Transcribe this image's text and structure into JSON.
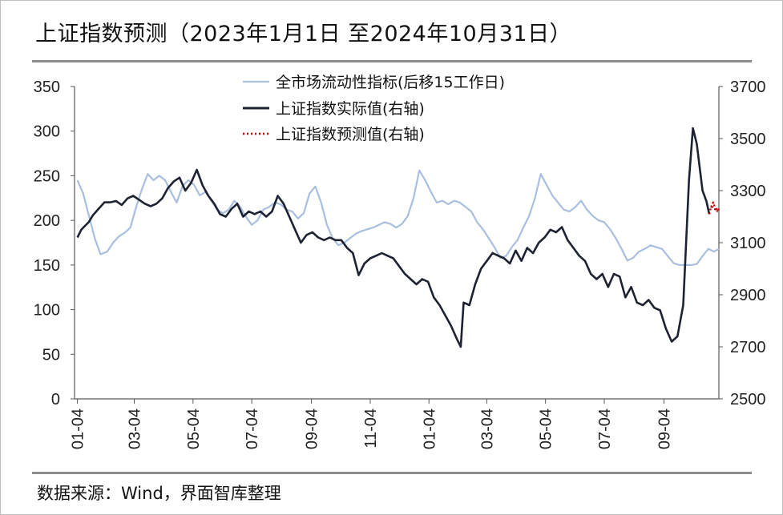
{
  "title": "上证指数预测（2023年1月1日 至2024年10月31日）",
  "source": "数据来源：Wind，界面智库整理",
  "colors": {
    "liquidity": "#a9bfdf",
    "actual": "#1d2333",
    "forecast": "#c00000",
    "axis": "#595959",
    "rule": "#8c8c8c"
  },
  "chart_data": {
    "type": "line",
    "x_tick_labels": [
      "01-04",
      "03-04",
      "05-04",
      "07-04",
      "09-04",
      "11-04",
      "01-04",
      "03-04",
      "05-04",
      "07-04",
      "09-04"
    ],
    "x_range": [
      "2023-01-01",
      "2024-10-31"
    ],
    "left_axis": {
      "ticks": [
        0,
        50,
        100,
        150,
        200,
        250,
        300,
        350
      ],
      "ylim": [
        0,
        350
      ]
    },
    "right_axis": {
      "ticks": [
        2500,
        2700,
        2900,
        3100,
        3300,
        3500,
        3700
      ],
      "ylim": [
        2500,
        3700
      ]
    },
    "legend": [
      "全市场流动性指标(后移15工作日)",
      "上证指数实际值(右轴)",
      "上证指数预测值(右轴)"
    ],
    "series": [
      {
        "name": "全市场流动性指标(后移15工作日)",
        "axis": "left",
        "style": "solid",
        "points": [
          [
            "2023-01-04",
            245
          ],
          [
            "2023-01-10",
            230
          ],
          [
            "2023-01-16",
            205
          ],
          [
            "2023-01-22",
            180
          ],
          [
            "2023-01-28",
            162
          ],
          [
            "2023-02-04",
            165
          ],
          [
            "2023-02-10",
            175
          ],
          [
            "2023-02-16",
            182
          ],
          [
            "2023-02-22",
            186
          ],
          [
            "2023-02-28",
            192
          ],
          [
            "2023-03-06",
            215
          ],
          [
            "2023-03-12",
            235
          ],
          [
            "2023-03-18",
            252
          ],
          [
            "2023-03-24",
            245
          ],
          [
            "2023-03-30",
            250
          ],
          [
            "2023-04-05",
            245
          ],
          [
            "2023-04-11",
            232
          ],
          [
            "2023-04-17",
            220
          ],
          [
            "2023-04-23",
            238
          ],
          [
            "2023-04-29",
            245
          ],
          [
            "2023-05-05",
            240
          ],
          [
            "2023-05-11",
            228
          ],
          [
            "2023-05-17",
            232
          ],
          [
            "2023-05-23",
            222
          ],
          [
            "2023-05-29",
            212
          ],
          [
            "2023-06-04",
            208
          ],
          [
            "2023-06-10",
            212
          ],
          [
            "2023-06-16",
            222
          ],
          [
            "2023-06-22",
            215
          ],
          [
            "2023-06-28",
            204
          ],
          [
            "2023-07-04",
            195
          ],
          [
            "2023-07-10",
            200
          ],
          [
            "2023-07-16",
            212
          ],
          [
            "2023-07-22",
            215
          ],
          [
            "2023-07-28",
            220
          ],
          [
            "2023-08-03",
            218
          ],
          [
            "2023-08-09",
            212
          ],
          [
            "2023-08-15",
            210
          ],
          [
            "2023-08-21",
            202
          ],
          [
            "2023-08-27",
            208
          ],
          [
            "2023-09-02",
            230
          ],
          [
            "2023-09-08",
            238
          ],
          [
            "2023-09-14",
            220
          ],
          [
            "2023-09-20",
            195
          ],
          [
            "2023-09-26",
            180
          ],
          [
            "2023-10-02",
            172
          ],
          [
            "2023-10-08",
            175
          ],
          [
            "2023-10-14",
            180
          ],
          [
            "2023-10-20",
            185
          ],
          [
            "2023-10-26",
            188
          ],
          [
            "2023-11-01",
            190
          ],
          [
            "2023-11-07",
            192
          ],
          [
            "2023-11-13",
            195
          ],
          [
            "2023-11-19",
            198
          ],
          [
            "2023-11-25",
            196
          ],
          [
            "2023-12-01",
            192
          ],
          [
            "2023-12-07",
            196
          ],
          [
            "2023-12-13",
            205
          ],
          [
            "2023-12-19",
            225
          ],
          [
            "2023-12-25",
            256
          ],
          [
            "2023-12-31",
            245
          ],
          [
            "2024-01-06",
            232
          ],
          [
            "2024-01-12",
            220
          ],
          [
            "2024-01-18",
            222
          ],
          [
            "2024-01-24",
            218
          ],
          [
            "2024-01-30",
            222
          ],
          [
            "2024-02-05",
            220
          ],
          [
            "2024-02-11",
            215
          ],
          [
            "2024-02-17",
            210
          ],
          [
            "2024-02-23",
            198
          ],
          [
            "2024-02-29",
            190
          ],
          [
            "2024-03-06",
            180
          ],
          [
            "2024-03-12",
            170
          ],
          [
            "2024-03-18",
            158
          ],
          [
            "2024-03-24",
            160
          ],
          [
            "2024-03-30",
            170
          ],
          [
            "2024-04-05",
            178
          ],
          [
            "2024-04-11",
            192
          ],
          [
            "2024-04-17",
            205
          ],
          [
            "2024-04-23",
            225
          ],
          [
            "2024-04-29",
            252
          ],
          [
            "2024-05-05",
            240
          ],
          [
            "2024-05-11",
            228
          ],
          [
            "2024-05-17",
            220
          ],
          [
            "2024-05-23",
            212
          ],
          [
            "2024-05-29",
            210
          ],
          [
            "2024-06-04",
            215
          ],
          [
            "2024-06-10",
            222
          ],
          [
            "2024-06-16",
            212
          ],
          [
            "2024-06-22",
            205
          ],
          [
            "2024-06-28",
            200
          ],
          [
            "2024-07-04",
            198
          ],
          [
            "2024-07-10",
            190
          ],
          [
            "2024-07-16",
            180
          ],
          [
            "2024-07-22",
            168
          ],
          [
            "2024-07-28",
            155
          ],
          [
            "2024-08-03",
            158
          ],
          [
            "2024-08-09",
            165
          ],
          [
            "2024-08-15",
            168
          ],
          [
            "2024-08-21",
            172
          ],
          [
            "2024-08-27",
            170
          ],
          [
            "2024-09-02",
            168
          ],
          [
            "2024-09-08",
            160
          ],
          [
            "2024-09-14",
            152
          ],
          [
            "2024-09-20",
            150
          ],
          [
            "2024-09-26",
            150
          ],
          [
            "2024-10-02",
            150
          ],
          [
            "2024-10-08",
            151
          ],
          [
            "2024-10-14",
            160
          ],
          [
            "2024-10-20",
            168
          ],
          [
            "2024-10-26",
            165
          ],
          [
            "2024-10-31",
            168
          ]
        ]
      },
      {
        "name": "上证指数实际值(右轴)",
        "axis": "right",
        "style": "solid",
        "points": [
          [
            "2023-01-04",
            3120
          ],
          [
            "2023-01-08",
            3150
          ],
          [
            "2023-01-12",
            3165
          ],
          [
            "2023-01-16",
            3180
          ],
          [
            "2023-01-20",
            3205
          ],
          [
            "2023-01-26",
            3230
          ],
          [
            "2023-02-01",
            3255
          ],
          [
            "2023-02-07",
            3255
          ],
          [
            "2023-02-13",
            3260
          ],
          [
            "2023-02-19",
            3245
          ],
          [
            "2023-02-25",
            3270
          ],
          [
            "2023-03-03",
            3280
          ],
          [
            "2023-03-09",
            3265
          ],
          [
            "2023-03-15",
            3250
          ],
          [
            "2023-03-21",
            3240
          ],
          [
            "2023-03-27",
            3250
          ],
          [
            "2023-04-02",
            3270
          ],
          [
            "2023-04-08",
            3310
          ],
          [
            "2023-04-14",
            3335
          ],
          [
            "2023-04-20",
            3350
          ],
          [
            "2023-04-26",
            3300
          ],
          [
            "2023-05-02",
            3330
          ],
          [
            "2023-05-08",
            3380
          ],
          [
            "2023-05-14",
            3320
          ],
          [
            "2023-05-20",
            3280
          ],
          [
            "2023-05-26",
            3250
          ],
          [
            "2023-06-01",
            3210
          ],
          [
            "2023-06-07",
            3200
          ],
          [
            "2023-06-13",
            3230
          ],
          [
            "2023-06-19",
            3250
          ],
          [
            "2023-06-25",
            3200
          ],
          [
            "2023-07-01",
            3220
          ],
          [
            "2023-07-07",
            3210
          ],
          [
            "2023-07-13",
            3220
          ],
          [
            "2023-07-19",
            3200
          ],
          [
            "2023-07-25",
            3220
          ],
          [
            "2023-07-31",
            3280
          ],
          [
            "2023-08-06",
            3250
          ],
          [
            "2023-08-12",
            3200
          ],
          [
            "2023-08-18",
            3150
          ],
          [
            "2023-08-24",
            3100
          ],
          [
            "2023-08-30",
            3130
          ],
          [
            "2023-09-05",
            3140
          ],
          [
            "2023-09-11",
            3120
          ],
          [
            "2023-09-17",
            3110
          ],
          [
            "2023-09-23",
            3120
          ],
          [
            "2023-09-29",
            3110
          ],
          [
            "2023-10-05",
            3110
          ],
          [
            "2023-10-11",
            3080
          ],
          [
            "2023-10-17",
            3060
          ],
          [
            "2023-10-23",
            2975
          ],
          [
            "2023-10-29",
            3020
          ],
          [
            "2023-11-04",
            3040
          ],
          [
            "2023-11-10",
            3050
          ],
          [
            "2023-11-16",
            3060
          ],
          [
            "2023-11-22",
            3050
          ],
          [
            "2023-11-28",
            3040
          ],
          [
            "2023-12-04",
            3010
          ],
          [
            "2023-12-10",
            2980
          ],
          [
            "2023-12-16",
            2960
          ],
          [
            "2023-12-22",
            2940
          ],
          [
            "2023-12-28",
            2960
          ],
          [
            "2024-01-03",
            2950
          ],
          [
            "2024-01-09",
            2890
          ],
          [
            "2024-01-15",
            2860
          ],
          [
            "2024-01-21",
            2820
          ],
          [
            "2024-01-27",
            2780
          ],
          [
            "2024-02-02",
            2730
          ],
          [
            "2024-02-06",
            2700
          ],
          [
            "2024-02-09",
            2870
          ],
          [
            "2024-02-15",
            2860
          ],
          [
            "2024-02-21",
            2940
          ],
          [
            "2024-02-27",
            3000
          ],
          [
            "2024-03-04",
            3030
          ],
          [
            "2024-03-10",
            3060
          ],
          [
            "2024-03-16",
            3050
          ],
          [
            "2024-03-22",
            3040
          ],
          [
            "2024-03-28",
            3020
          ],
          [
            "2024-04-03",
            3070
          ],
          [
            "2024-04-09",
            3030
          ],
          [
            "2024-04-15",
            3080
          ],
          [
            "2024-04-21",
            3060
          ],
          [
            "2024-04-27",
            3100
          ],
          [
            "2024-05-03",
            3120
          ],
          [
            "2024-05-09",
            3150
          ],
          [
            "2024-05-15",
            3140
          ],
          [
            "2024-05-21",
            3160
          ],
          [
            "2024-05-27",
            3110
          ],
          [
            "2024-06-02",
            3080
          ],
          [
            "2024-06-08",
            3050
          ],
          [
            "2024-06-14",
            3030
          ],
          [
            "2024-06-20",
            2980
          ],
          [
            "2024-06-26",
            2960
          ],
          [
            "2024-07-02",
            2980
          ],
          [
            "2024-07-08",
            2930
          ],
          [
            "2024-07-14",
            2980
          ],
          [
            "2024-07-20",
            2970
          ],
          [
            "2024-07-26",
            2890
          ],
          [
            "2024-08-01",
            2930
          ],
          [
            "2024-08-07",
            2870
          ],
          [
            "2024-08-13",
            2860
          ],
          [
            "2024-08-19",
            2880
          ],
          [
            "2024-08-25",
            2850
          ],
          [
            "2024-08-31",
            2840
          ],
          [
            "2024-09-06",
            2770
          ],
          [
            "2024-09-12",
            2720
          ],
          [
            "2024-09-18",
            2740
          ],
          [
            "2024-09-24",
            2860
          ],
          [
            "2024-09-30",
            3340
          ],
          [
            "2024-10-04",
            3540
          ],
          [
            "2024-10-08",
            3480
          ],
          [
            "2024-10-14",
            3300
          ],
          [
            "2024-10-18",
            3260
          ],
          [
            "2024-10-21",
            3210
          ]
        ]
      },
      {
        "name": "上证指数预测值(右轴)",
        "axis": "right",
        "style": "dotted",
        "points": [
          [
            "2024-10-21",
            3210
          ],
          [
            "2024-10-22",
            3225
          ],
          [
            "2024-10-23",
            3240
          ],
          [
            "2024-10-24",
            3230
          ],
          [
            "2024-10-25",
            3255
          ],
          [
            "2024-10-26",
            3245
          ],
          [
            "2024-10-27",
            3228
          ],
          [
            "2024-10-28",
            3236
          ],
          [
            "2024-10-29",
            3218
          ],
          [
            "2024-10-30",
            3232
          ],
          [
            "2024-10-31",
            3225
          ]
        ]
      }
    ]
  }
}
